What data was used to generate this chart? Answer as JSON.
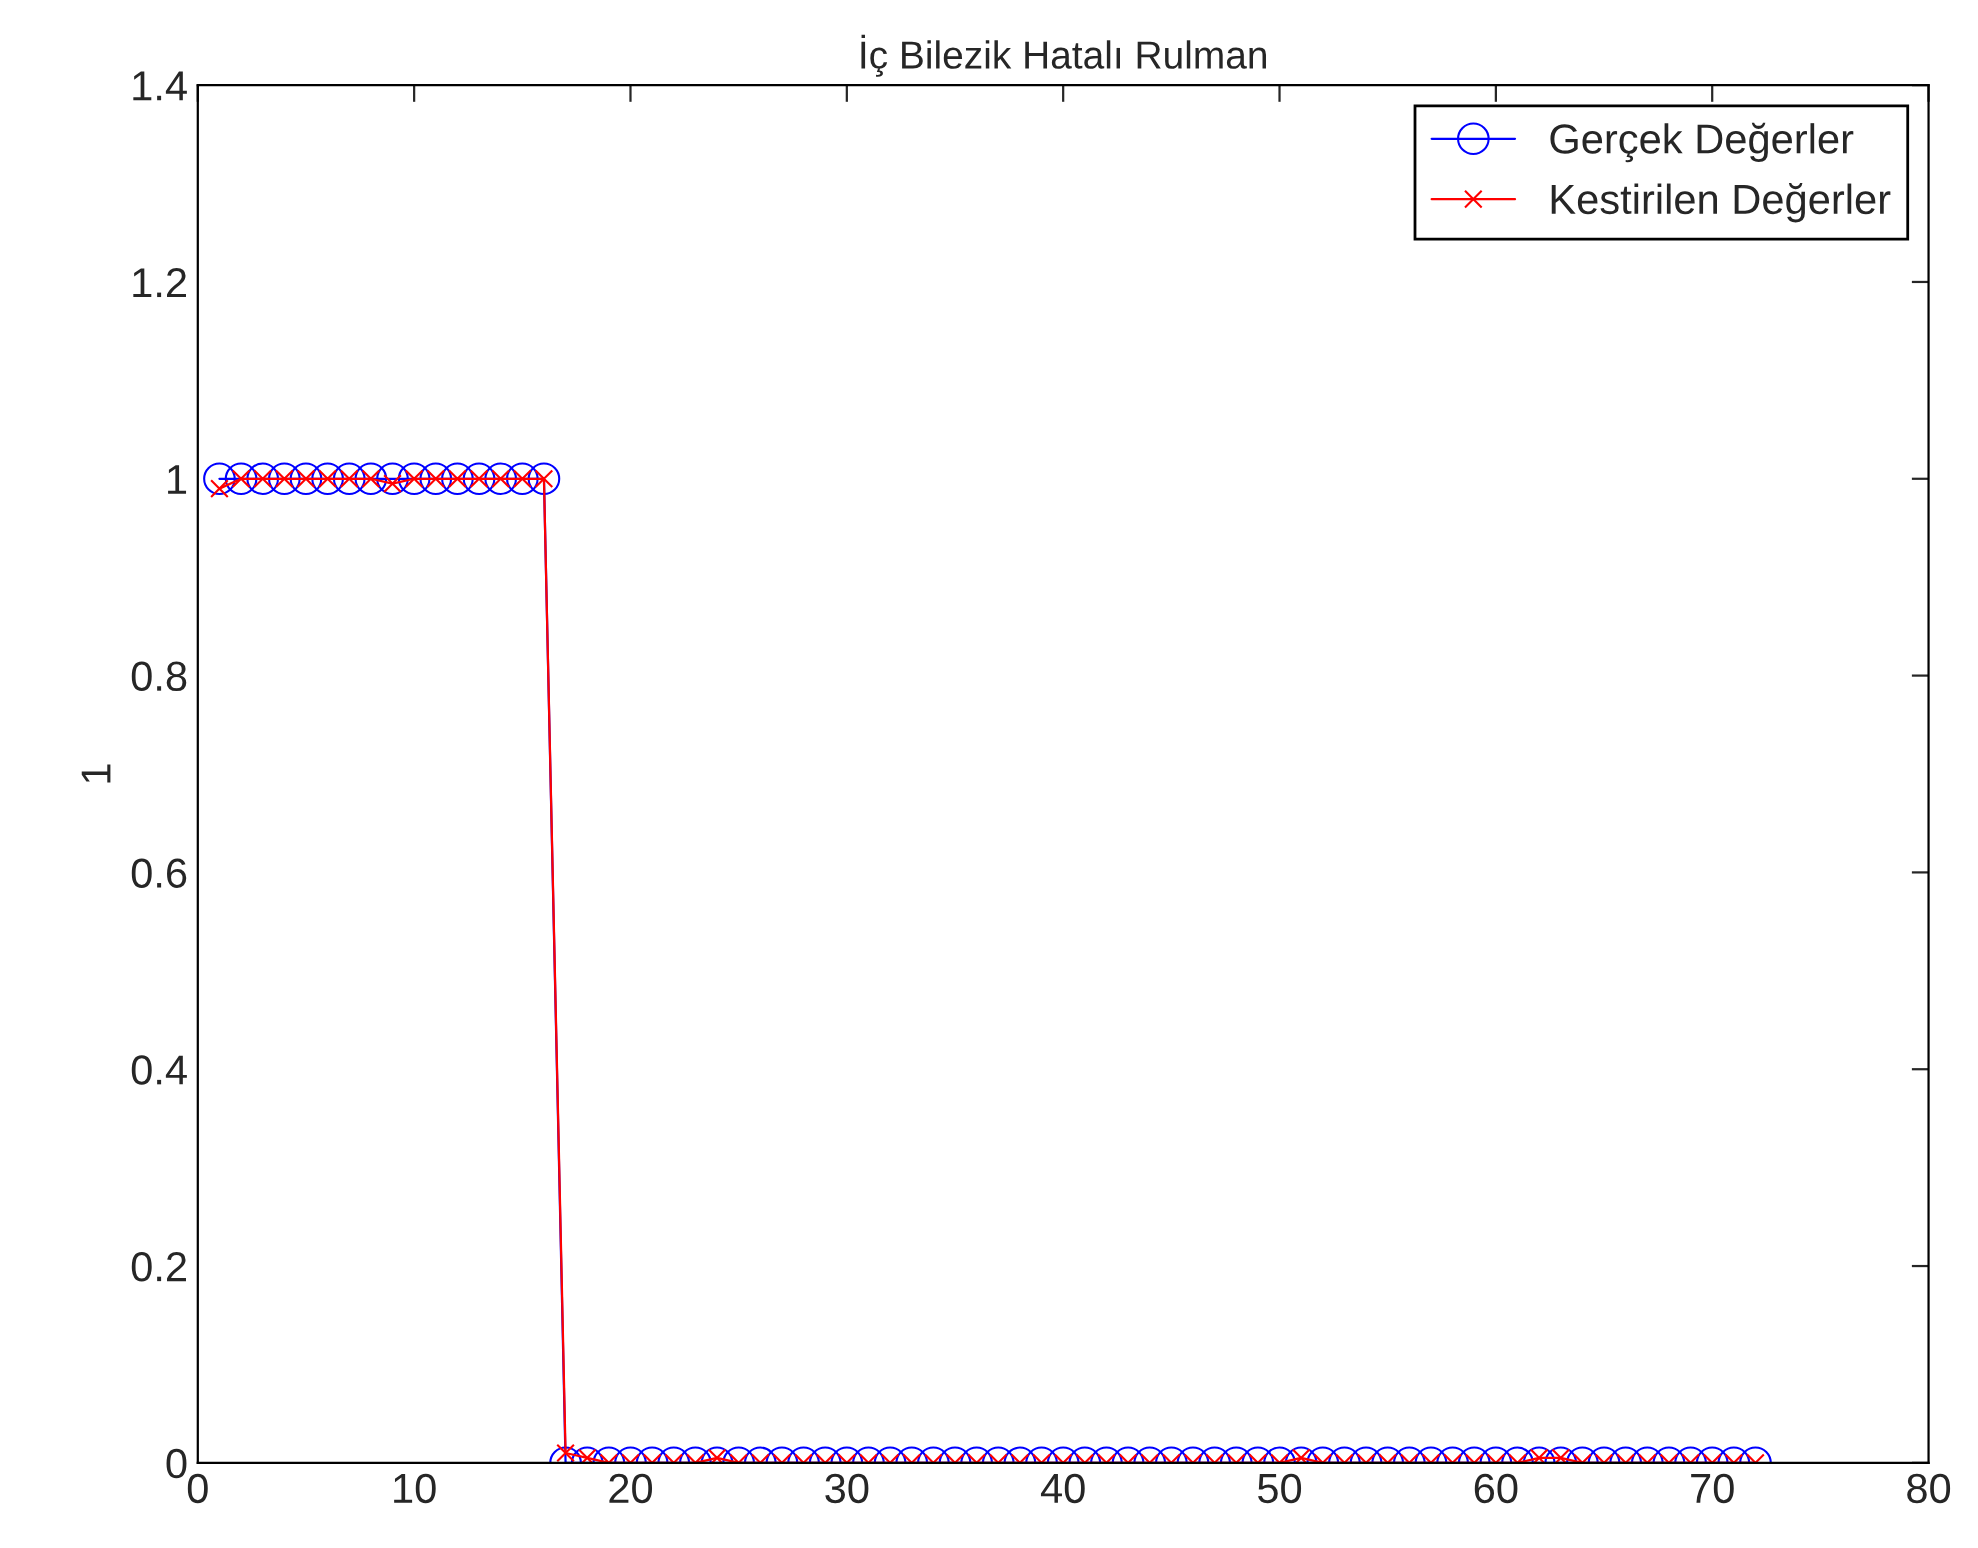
{
  "chart_data": {
    "type": "line",
    "title": "İç Bilezik Hatalı Rulman",
    "ylabel": "1",
    "x": [
      1,
      2,
      3,
      4,
      5,
      6,
      7,
      8,
      9,
      10,
      11,
      12,
      13,
      14,
      15,
      16,
      17,
      18,
      19,
      20,
      21,
      22,
      23,
      24,
      25,
      26,
      27,
      28,
      29,
      30,
      31,
      32,
      33,
      34,
      35,
      36,
      37,
      38,
      39,
      40,
      41,
      42,
      43,
      44,
      45,
      46,
      47,
      48,
      49,
      50,
      51,
      52,
      53,
      54,
      55,
      56,
      57,
      58,
      59,
      60,
      61,
      62,
      63,
      64,
      65,
      66,
      67,
      68,
      69,
      70,
      71,
      72
    ],
    "series": [
      {
        "name": "Gerçek Değerler",
        "color": "#0000ff",
        "marker": "circle",
        "values": [
          1,
          1,
          1,
          1,
          1,
          1,
          1,
          1,
          1,
          1,
          1,
          1,
          1,
          1,
          1,
          1,
          0,
          0,
          0,
          0,
          0,
          0,
          0,
          0,
          0,
          0,
          0,
          0,
          0,
          0,
          0,
          0,
          0,
          0,
          0,
          0,
          0,
          0,
          0,
          0,
          0,
          0,
          0,
          0,
          0,
          0,
          0,
          0,
          0,
          0,
          0,
          0,
          0,
          0,
          0,
          0,
          0,
          0,
          0,
          0,
          0,
          0,
          0,
          0,
          0,
          0,
          0,
          0,
          0,
          0,
          0,
          0
        ]
      },
      {
        "name": "Kestirilen Değerler",
        "color": "#ff0000",
        "marker": "cross",
        "values": [
          0.99,
          1,
          1,
          1,
          1,
          1,
          1,
          1,
          0.995,
          1,
          1,
          1,
          1,
          1,
          1,
          1,
          0.01,
          0.005,
          0,
          0,
          0,
          0,
          0,
          0.005,
          0,
          0,
          0,
          0,
          0,
          0,
          0,
          0,
          0,
          0,
          0,
          0,
          0,
          0,
          0,
          0,
          0,
          0,
          0,
          0,
          0,
          0,
          0,
          0,
          0,
          0,
          0.005,
          0,
          0,
          0,
          0,
          0,
          0,
          0,
          0,
          0,
          0,
          0.005,
          0.005,
          0,
          0,
          0,
          0,
          0,
          0,
          0,
          0,
          0
        ]
      }
    ],
    "xlim": [
      0,
      80
    ],
    "xticks": [
      0,
      10,
      20,
      30,
      40,
      50,
      60,
      70,
      80
    ],
    "ylim": [
      0,
      1.4
    ],
    "yticks": [
      0,
      0.2,
      0.4,
      0.6,
      0.8,
      1,
      1.2,
      1.4
    ],
    "grid": false,
    "legend": "top right"
  }
}
